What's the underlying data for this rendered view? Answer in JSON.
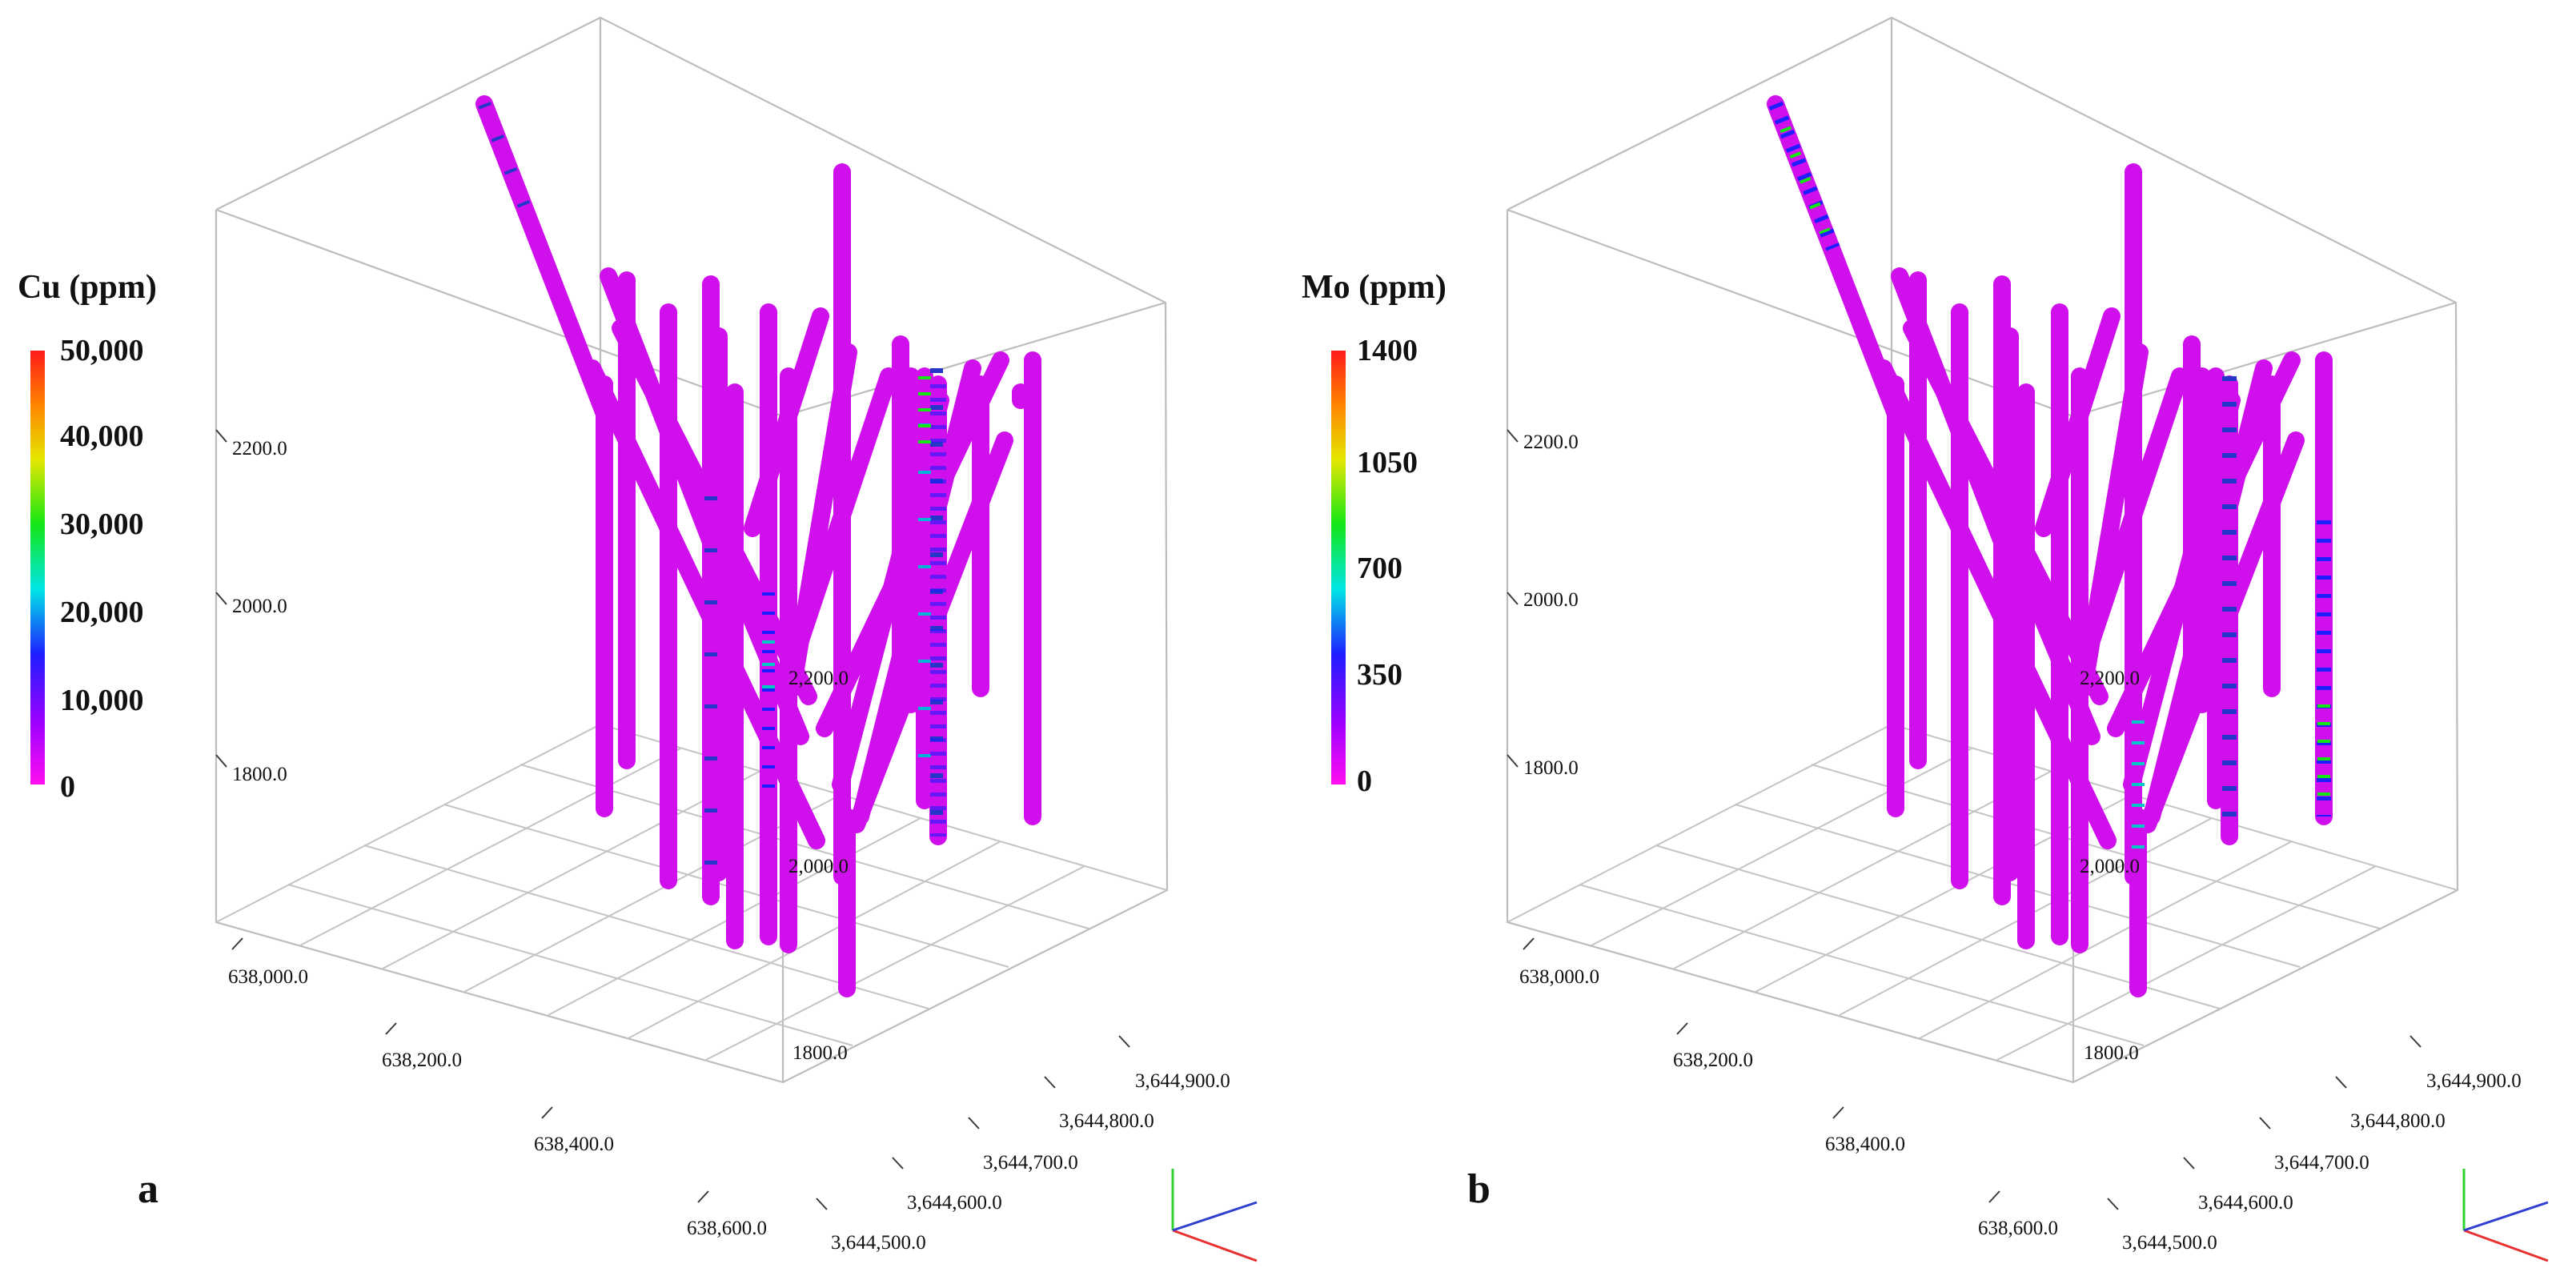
{
  "panels": [
    {
      "letter": "a",
      "colorbar": {
        "title": "Cu (ppm)",
        "ticks": [
          "50,000",
          "40,000",
          "30,000",
          "20,000",
          "10,000",
          "0"
        ]
      },
      "vertical_axis_labels": [
        "2200.0",
        "2000.0",
        "1800.0"
      ],
      "inner_axis_labels": [
        "2,200.0",
        "2,000.0",
        "1800.0"
      ],
      "easting_labels": [
        "638,000.0",
        "638,200.0",
        "638,400.0",
        "638,600.0"
      ],
      "northing_labels": [
        "3,644,900.0",
        "3,644,800.0",
        "3,644,700.0",
        "3,644,600.0",
        "3,644,500.0"
      ]
    },
    {
      "letter": "b",
      "colorbar": {
        "title": "Mo (ppm)",
        "ticks": [
          "1400",
          "1050",
          "700",
          "350",
          "0"
        ]
      },
      "vertical_axis_labels": [
        "2200.0",
        "2000.0",
        "1800.0"
      ],
      "inner_axis_labels": [
        "2,200.0",
        "2,000.0",
        "1800.0"
      ],
      "easting_labels": [
        "638,000.0",
        "638,200.0",
        "638,400.0",
        "638,600.0"
      ],
      "northing_labels": [
        "3,644,900.0",
        "3,644,800.0",
        "3,644,700.0",
        "3,644,600.0",
        "3,644,500.0"
      ]
    }
  ],
  "colors": {
    "background": "#ffffff",
    "drillhole": "#d010ec",
    "colorbar_stops": [
      "#ff0ef0",
      "#a000ff",
      "#1e1eff",
      "#00e6e6",
      "#14e614",
      "#e6e600",
      "#ff8000",
      "#ff1a1a"
    ],
    "axis_x": "#e83030",
    "axis_y": "#2fd12f",
    "axis_z": "#2f3fd1"
  }
}
